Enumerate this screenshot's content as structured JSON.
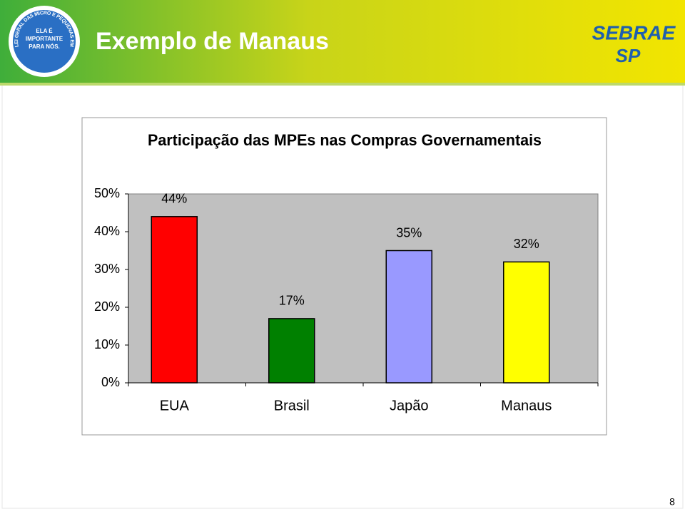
{
  "header": {
    "title": "Exemplo de Manaus",
    "logo": {
      "arc_text": "LEI GERAL DAS MICRO E PEQUENAS EMPRESAS",
      "center_lines": [
        "ELA É",
        "IMPORTANTE",
        "PARA NÓS."
      ]
    },
    "brand": {
      "name": "SEBRAE",
      "region": "SP"
    }
  },
  "chart_data": {
    "type": "bar",
    "title": "Participação das MPEs nas Compras Governamentais",
    "categories": [
      "EUA",
      "Brasil",
      "Japão",
      "Manaus"
    ],
    "values": [
      44,
      17,
      35,
      32
    ],
    "value_labels": [
      "44%",
      "17%",
      "35%",
      "32%"
    ],
    "colors": [
      "#ff0000",
      "#008000",
      "#9999ff",
      "#ffff00"
    ],
    "ylim": [
      0,
      50
    ],
    "yticks": [
      {
        "value": 0,
        "label": "0%"
      },
      {
        "value": 10,
        "label": "10%"
      },
      {
        "value": 20,
        "label": "20%"
      },
      {
        "value": 30,
        "label": "30%"
      },
      {
        "value": 40,
        "label": "40%"
      },
      {
        "value": 50,
        "label": "50%"
      }
    ],
    "grid": false
  },
  "page_number": "8"
}
